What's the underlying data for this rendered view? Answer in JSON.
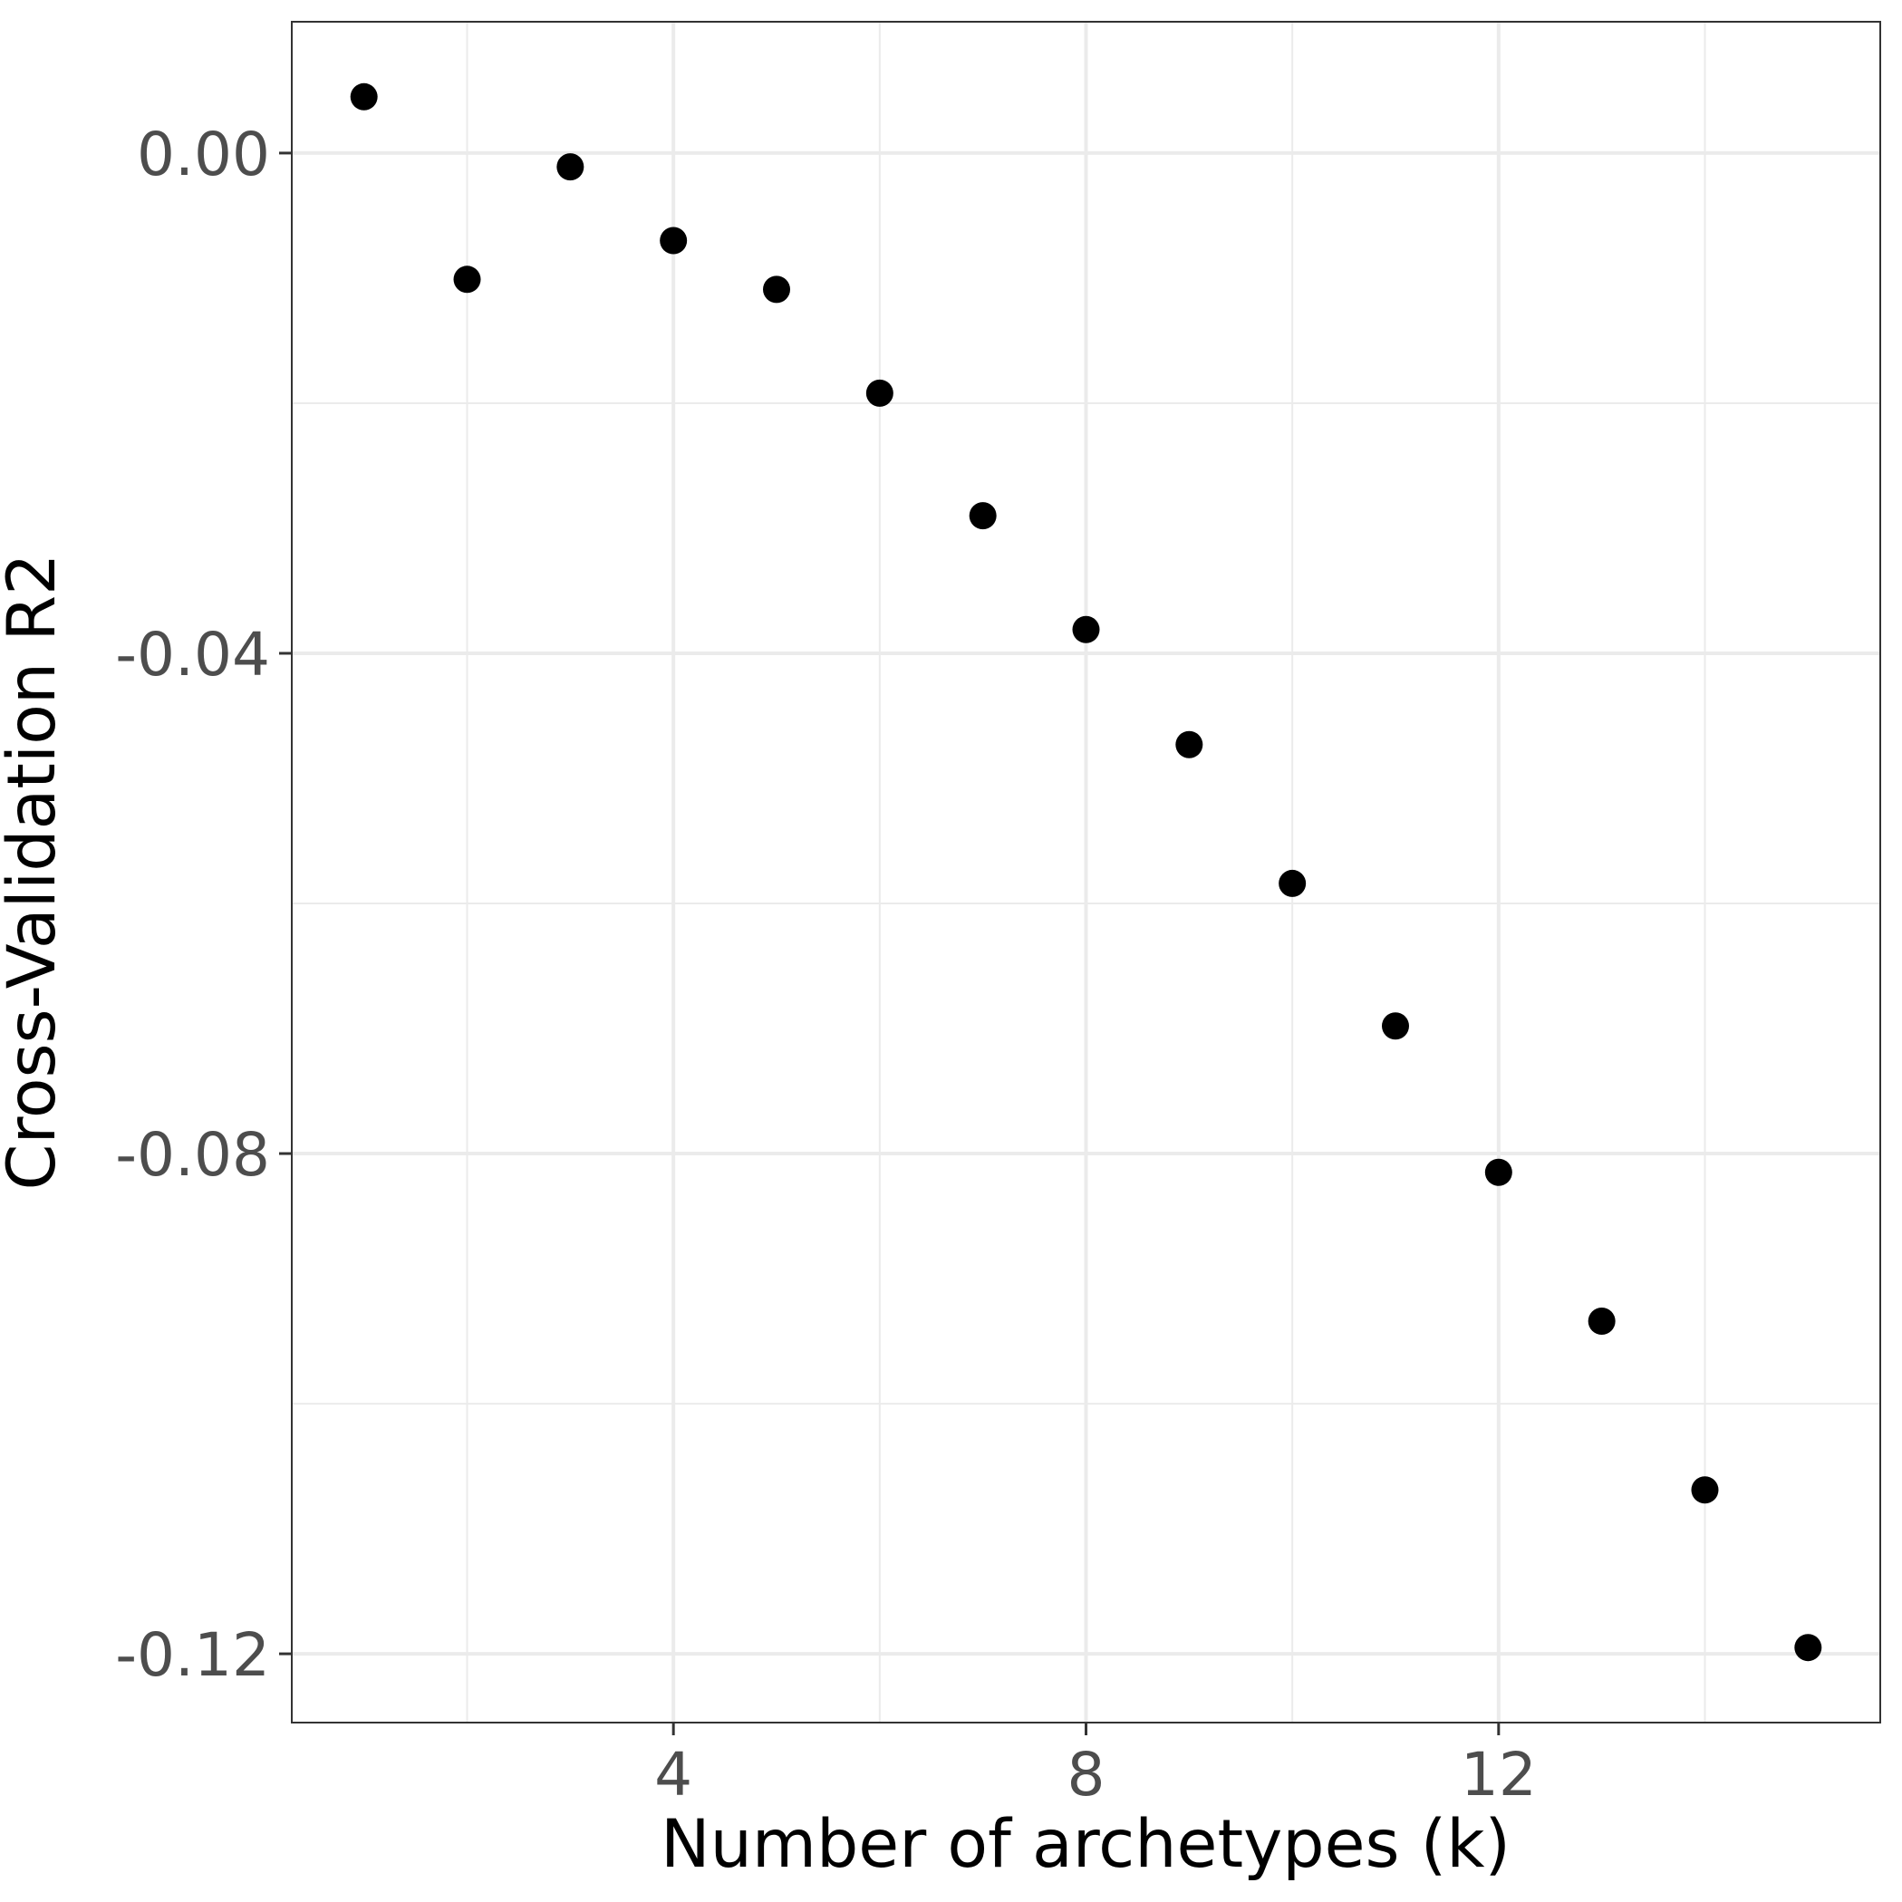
{
  "chart_data": {
    "type": "scatter",
    "title": "",
    "xlabel": "Number of archetypes (k)",
    "ylabel": "Cross-Validation R2",
    "xlim": [
      0.3,
      15.7
    ],
    "ylim": [
      -0.1255,
      0.0105
    ],
    "x_ticks": [
      4,
      8,
      12
    ],
    "x_tick_labels": [
      "4",
      "8",
      "12"
    ],
    "x_minor_ticks": [
      2,
      6,
      10,
      14
    ],
    "y_ticks": [
      0.0,
      -0.04,
      -0.08,
      -0.12
    ],
    "y_tick_labels": [
      "0.00",
      "-0.04",
      "-0.08",
      "-0.12"
    ],
    "y_minor_ticks": [
      -0.02,
      -0.06,
      -0.1
    ],
    "grid": true,
    "legend": "none",
    "point_color": "#000000",
    "series": [
      {
        "x": [
          1,
          2,
          3,
          4,
          5,
          6,
          7,
          8,
          9,
          10,
          11,
          12,
          13,
          14,
          15
        ],
        "y": [
          0.0045,
          -0.0101,
          -0.0011,
          -0.007,
          -0.0109,
          -0.0192,
          -0.029,
          -0.0381,
          -0.0473,
          -0.0584,
          -0.0698,
          -0.0815,
          -0.0934,
          -0.1069,
          -0.1195
        ]
      }
    ]
  }
}
